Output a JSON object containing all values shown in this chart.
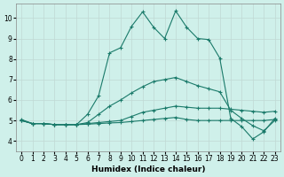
{
  "xlabel": "Humidex (Indice chaleur)",
  "bg_color": "#cff0ea",
  "grid_color": "#c0d8d4",
  "line_color": "#1a7a6a",
  "xlim": [
    -0.5,
    23.5
  ],
  "ylim": [
    3.5,
    10.7
  ],
  "xticks": [
    0,
    1,
    2,
    3,
    4,
    5,
    6,
    7,
    8,
    9,
    10,
    11,
    12,
    13,
    14,
    15,
    16,
    17,
    18,
    19,
    20,
    21,
    22,
    23
  ],
  "yticks": [
    4,
    5,
    6,
    7,
    8,
    9,
    10
  ],
  "series1_x": [
    0,
    1,
    2,
    3,
    4,
    5,
    6,
    7,
    8,
    9,
    10,
    11,
    12,
    13,
    14,
    15,
    16,
    17,
    18,
    19,
    20,
    21,
    22,
    23
  ],
  "series1_y": [
    5.0,
    4.85,
    4.85,
    4.8,
    4.8,
    4.8,
    4.82,
    4.85,
    4.88,
    4.9,
    4.95,
    5.0,
    5.05,
    5.1,
    5.15,
    5.05,
    5.0,
    5.0,
    5.0,
    5.0,
    5.0,
    5.0,
    5.0,
    5.05
  ],
  "series2_x": [
    0,
    1,
    2,
    3,
    4,
    5,
    6,
    7,
    8,
    9,
    10,
    11,
    12,
    13,
    14,
    15,
    16,
    17,
    18,
    19,
    20,
    21,
    22,
    23
  ],
  "series2_y": [
    5.0,
    4.85,
    4.85,
    4.8,
    4.8,
    4.8,
    4.85,
    4.9,
    4.95,
    5.0,
    5.2,
    5.4,
    5.5,
    5.6,
    5.7,
    5.65,
    5.6,
    5.6,
    5.6,
    5.55,
    5.5,
    5.45,
    5.4,
    5.45
  ],
  "series3_x": [
    0,
    1,
    2,
    3,
    4,
    5,
    6,
    7,
    8,
    9,
    10,
    11,
    12,
    13,
    14,
    15,
    16,
    17,
    18,
    19,
    20,
    21,
    22,
    23
  ],
  "series3_y": [
    5.0,
    4.85,
    4.85,
    4.8,
    4.8,
    4.8,
    4.9,
    5.3,
    5.7,
    6.0,
    6.35,
    6.65,
    6.9,
    7.0,
    7.1,
    6.9,
    6.7,
    6.55,
    6.4,
    5.5,
    5.1,
    4.75,
    4.5,
    5.0
  ],
  "series4_x": [
    0,
    1,
    2,
    3,
    4,
    5,
    6,
    7,
    8,
    9,
    10,
    11,
    12,
    13,
    14,
    15,
    16,
    17,
    18,
    19,
    20,
    21,
    22,
    23
  ],
  "series4_y": [
    5.05,
    4.85,
    4.85,
    4.8,
    4.8,
    4.8,
    5.3,
    6.2,
    8.3,
    8.55,
    9.6,
    10.3,
    9.55,
    9.0,
    10.35,
    9.55,
    9.0,
    8.95,
    8.05,
    5.1,
    4.7,
    4.1,
    4.45,
    5.1
  ]
}
